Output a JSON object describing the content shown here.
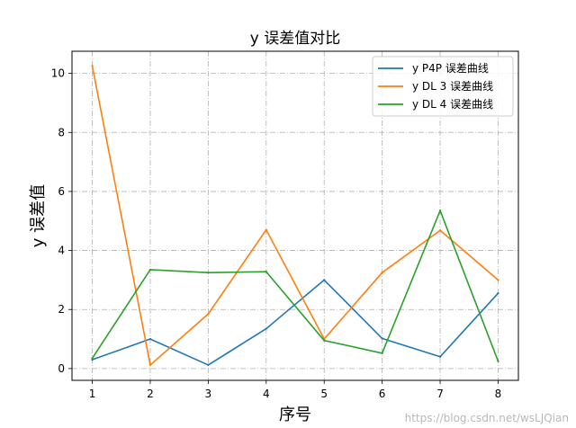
{
  "chart_data": {
    "type": "line",
    "title": "y 误差值对比",
    "xlabel": "序号",
    "ylabel": "y 误差值",
    "x": [
      1,
      2,
      3,
      4,
      5,
      6,
      7,
      8
    ],
    "xlim": [
      0.65,
      8.35
    ],
    "ylim": [
      -0.4,
      10.75
    ],
    "yticks": [
      0,
      2,
      4,
      6,
      8,
      10
    ],
    "grid": true,
    "legend_position": "top-right",
    "series": [
      {
        "name": "y P4P 误差曲线",
        "color": "#1f77b4",
        "values": [
          0.3,
          1.0,
          0.12,
          1.35,
          3.0,
          1.02,
          0.4,
          2.55
        ]
      },
      {
        "name": "y DL 3 误差曲线",
        "color": "#ff7f0e",
        "values": [
          10.25,
          0.12,
          1.85,
          4.7,
          1.0,
          3.25,
          4.68,
          3.0
        ]
      },
      {
        "name": "y DL 4 误差曲线",
        "color": "#2ca02c",
        "values": [
          0.35,
          3.35,
          3.25,
          3.28,
          0.95,
          0.52,
          5.35,
          0.25
        ]
      }
    ]
  },
  "watermark": "https://blog.csdn.net/wsLJQian"
}
